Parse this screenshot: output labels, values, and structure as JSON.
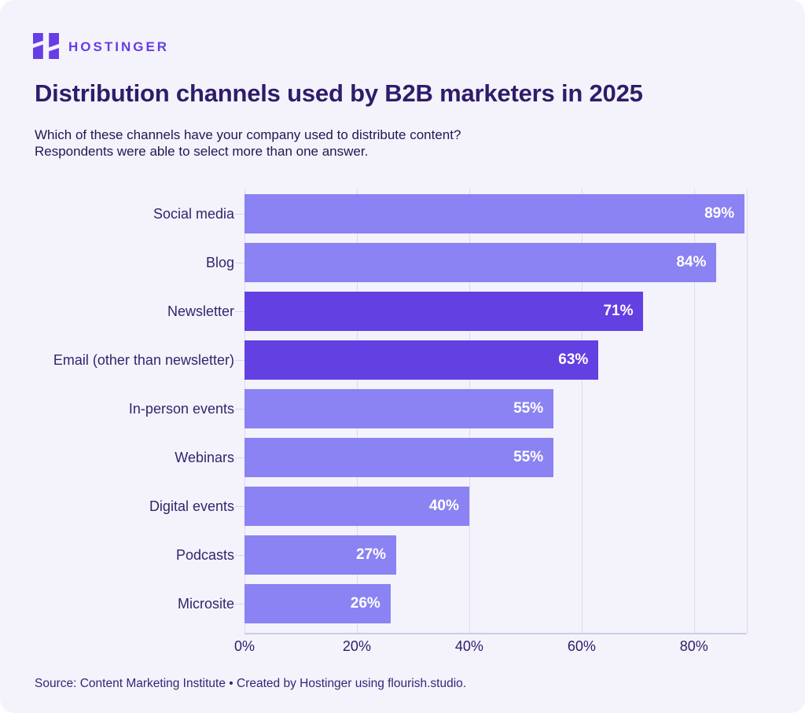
{
  "brand": {
    "name": "HOSTINGER",
    "logo_color": "#673DE6"
  },
  "title": "Distribution channels used by B2B marketers in 2025",
  "subtitle_line1": "Which of these channels have your company used to distribute content?",
  "subtitle_line2": "Respondents were able to select more than one answer.",
  "source": "Source: Content Marketing Institute • Created by Hostinger using flourish.studio.",
  "chart_data": {
    "type": "bar",
    "orientation": "horizontal",
    "title": "Distribution channels used by B2B marketers in 2025",
    "categories": [
      "Social media",
      "Blog",
      "Newsletter",
      "Email (other than newsletter)",
      "In-person events",
      "Webinars",
      "Digital events",
      "Podcasts",
      "Microsite"
    ],
    "values": [
      89,
      84,
      71,
      63,
      55,
      55,
      40,
      27,
      26
    ],
    "value_labels": [
      "89%",
      "84%",
      "71%",
      "63%",
      "55%",
      "55%",
      "40%",
      "27%",
      "26%"
    ],
    "highlighted": [
      "Newsletter",
      "Email (other than newsletter)"
    ],
    "x_ticks": [
      "0%",
      "20%",
      "40%",
      "60%",
      "80%"
    ],
    "x_tick_values": [
      0,
      20,
      40,
      60,
      80
    ],
    "xlim": [
      0,
      89.4
    ],
    "grid": true,
    "legend": false,
    "colors": {
      "bar": "#8B82F3",
      "bar_highlight": "#6340E2",
      "value_label": "#ffffff",
      "category_label": "#33246E",
      "gridline": "#ddd9ee",
      "background": "#F4F3FB"
    }
  }
}
